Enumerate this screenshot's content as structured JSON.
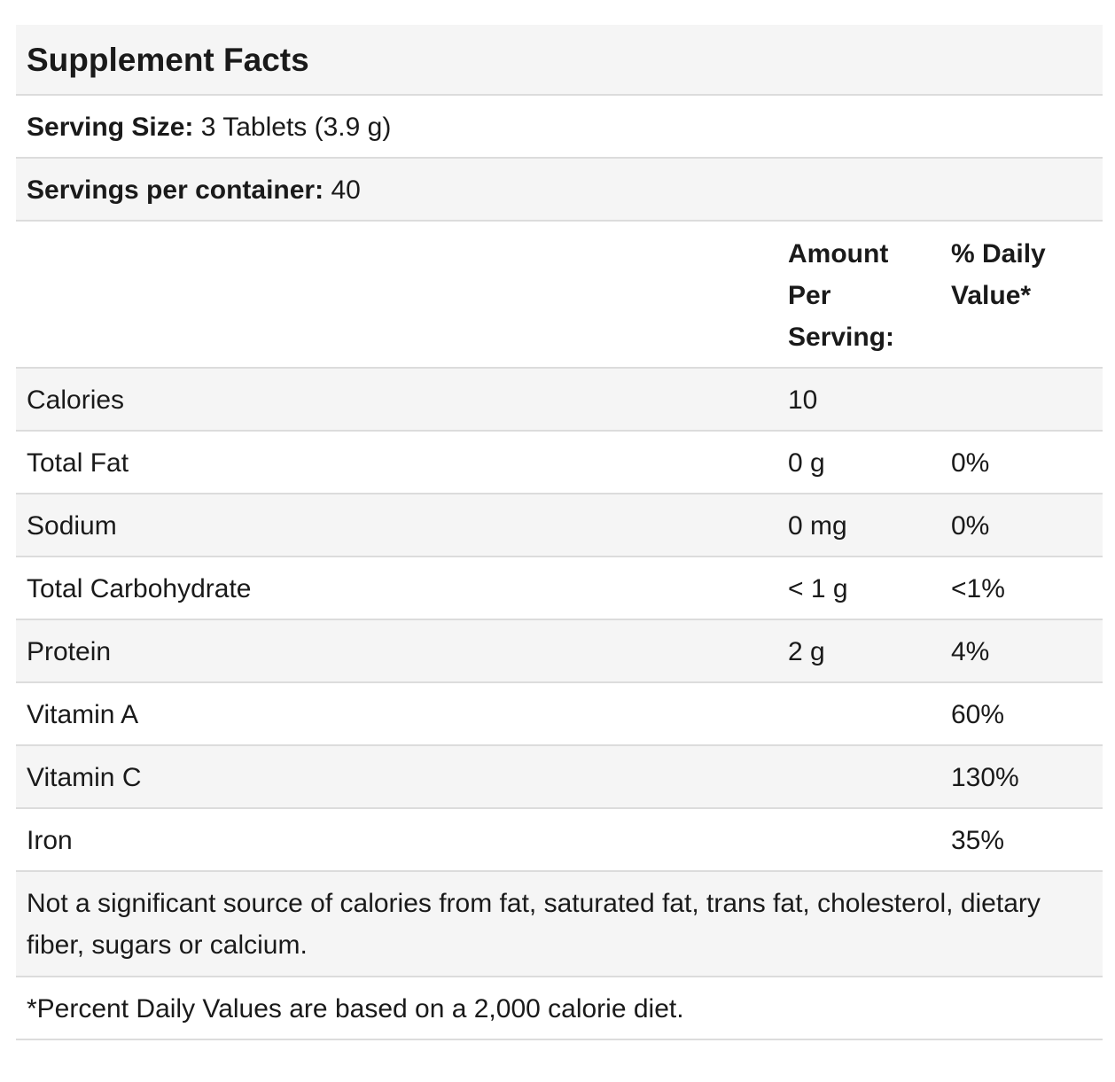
{
  "title": "Supplement Facts",
  "serving_size": {
    "label": "Serving Size:",
    "value": "3 Tablets (3.9 g)"
  },
  "servings_per_container": {
    "label": "Servings per container:",
    "value": "40"
  },
  "columns": {
    "amount": [
      "Amount",
      "Per",
      "Serving:"
    ],
    "daily_value": [
      "% Daily",
      "Value*"
    ]
  },
  "nutrients": [
    {
      "name": "Calories",
      "amount": "10",
      "dv": ""
    },
    {
      "name": "Total Fat",
      "amount": "0 g",
      "dv": "0%"
    },
    {
      "name": "Sodium",
      "amount": "0 mg",
      "dv": "0%"
    },
    {
      "name": "Total Carbohydrate",
      "amount": "< 1 g",
      "dv": "<1%"
    },
    {
      "name": "Protein",
      "amount": "2 g",
      "dv": "4%"
    },
    {
      "name": "Vitamin A",
      "amount": "",
      "dv": "60%"
    },
    {
      "name": "Vitamin C",
      "amount": "",
      "dv": "130%"
    },
    {
      "name": "Iron",
      "amount": "",
      "dv": "35%"
    }
  ],
  "note": "Not a significant source of calories from fat, saturated fat, trans fat, cholesterol, dietary fiber, sugars or calcium.",
  "footnote": "*Percent Daily Values are based on a 2,000 calorie diet."
}
